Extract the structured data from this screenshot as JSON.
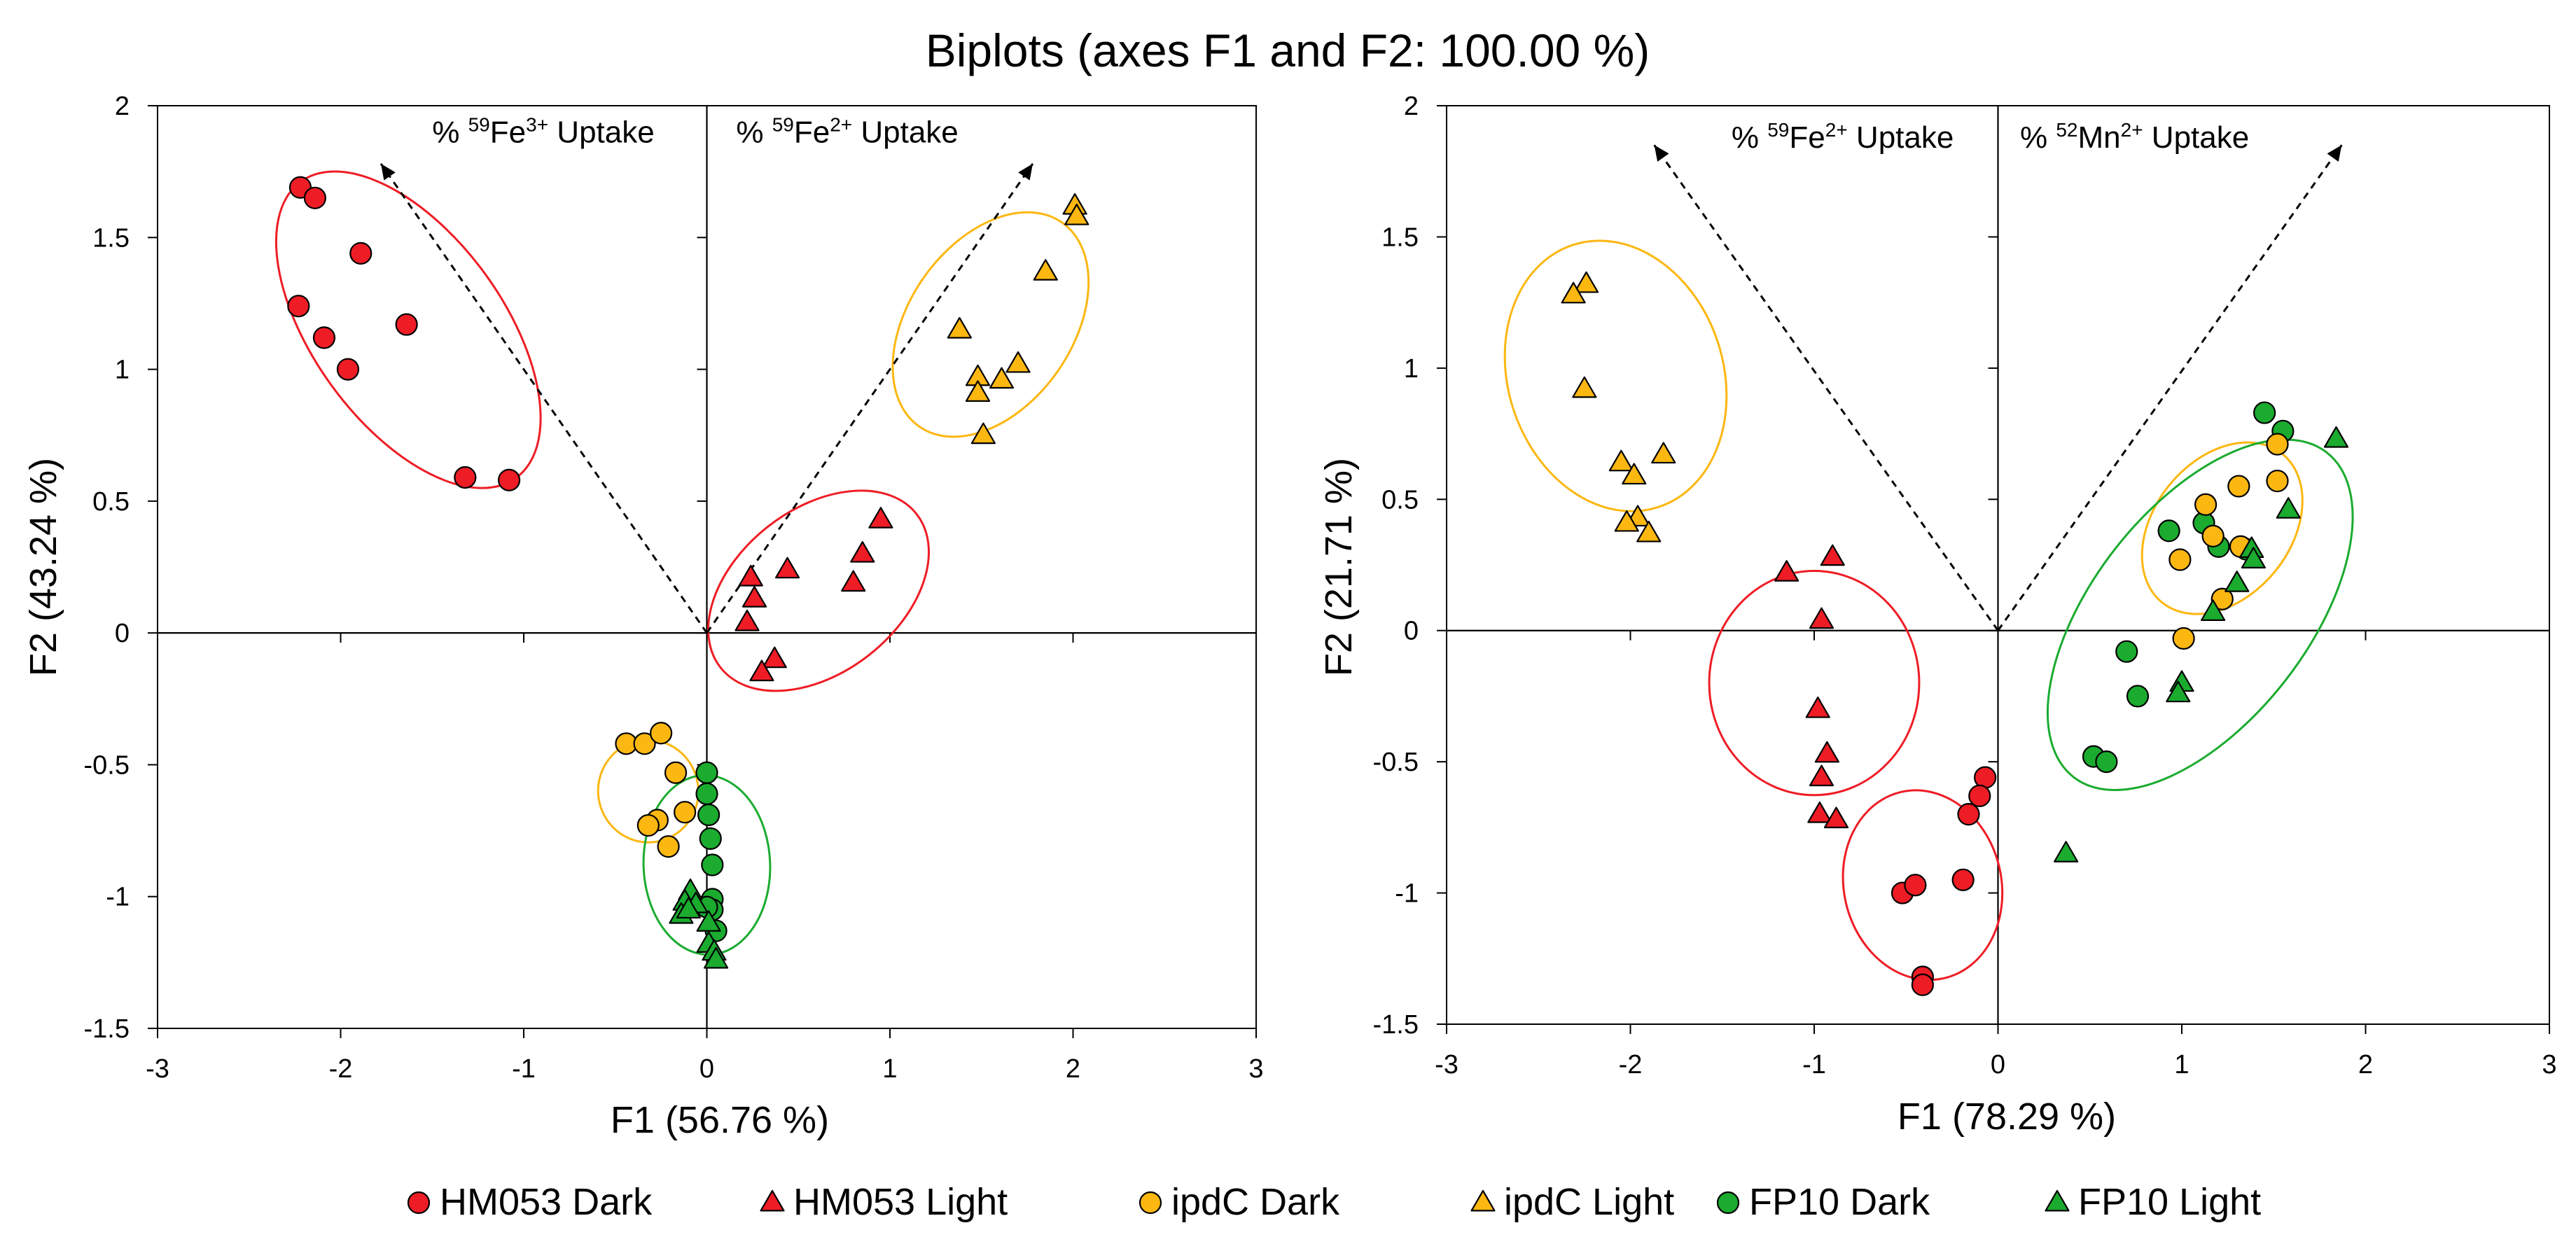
{
  "chart_data": {
    "title": "Biplots (axes F1 and F2: 100.00 %)",
    "markers": {
      "HM053 Dark": {
        "shape": "circle",
        "color": "#ee1c25"
      },
      "HM053 Light": {
        "shape": "triangle",
        "color": "#ee1c25"
      },
      "ipdC Dark": {
        "shape": "circle",
        "color": "#fcb711"
      },
      "ipdC Light": {
        "shape": "triangle",
        "color": "#fcb711"
      },
      "FP10 Dark": {
        "shape": "circle",
        "color": "#1aab2f"
      },
      "FP10 Light": {
        "shape": "triangle",
        "color": "#1aab2f"
      }
    },
    "legend": [
      {
        "label": "HM053 Dark",
        "series": "HM053 Dark"
      },
      {
        "label": "HM053 Light",
        "series": "HM053 Light"
      },
      {
        "label": "ipdC Dark",
        "series": "ipdC Dark"
      },
      {
        "label": "ipdC Light",
        "series": "ipdC Light"
      },
      {
        "label": "FP10 Dark",
        "series": "FP10 Dark"
      },
      {
        "label": "FP10 Light",
        "series": "FP10 Light"
      }
    ],
    "plots": [
      {
        "type": "scatter",
        "xlabel": "F1 (56.76 %)",
        "ylabel": "F2 (43.24 %)",
        "xlim": [
          -3,
          3
        ],
        "ylim": [
          -1.5,
          2
        ],
        "xticks": [
          "-3",
          "-2",
          "-1",
          "0",
          "1",
          "2",
          "3"
        ],
        "yticks": [
          "-1.5",
          "-1",
          "-0.5",
          "0",
          "0.5",
          "1",
          "1.5",
          "2"
        ],
        "xtick_values": [
          -3,
          -2,
          -1,
          0,
          1,
          2,
          3
        ],
        "ytick_values": [
          -1.5,
          -1,
          -0.5,
          0,
          0.5,
          1,
          1.5,
          2
        ],
        "vectors": [
          {
            "name": "Fe3",
            "from": [
              0,
              0
            ],
            "to": [
              -1.78,
              1.78
            ]
          },
          {
            "name": "Fe2",
            "from": [
              0,
              0
            ],
            "to": [
              1.78,
              1.78
            ]
          }
        ],
        "vector_labels": [
          {
            "pre": "% ",
            "sup": "59",
            "mid": "Fe",
            "sup2": "3+",
            "post": " Uptake",
            "x": -1.5,
            "y": 1.86
          },
          {
            "pre": "% ",
            "sup": "59",
            "mid": "Fe",
            "sup2": "2+",
            "post": " Uptake",
            "x": 0.16,
            "y": 1.86
          }
        ],
        "ellipses": [
          {
            "color": "#ee1c25",
            "cx": -1.63,
            "cy": 1.15,
            "rx": 1.0,
            "ry": 0.36,
            "angle_deg": -54
          },
          {
            "color": "#fcb711",
            "cx": 1.55,
            "cy": 1.17,
            "rx": 0.68,
            "ry": 0.31,
            "angle_deg": 55
          },
          {
            "color": "#ee1c25",
            "cx": 0.61,
            "cy": 0.16,
            "rx": 0.68,
            "ry": 0.31,
            "angle_deg": 38
          },
          {
            "color": "#fcb711",
            "cx": -0.32,
            "cy": -0.6,
            "rx": 0.28,
            "ry": 0.19,
            "angle_deg": -82
          },
          {
            "color": "#1aab2f",
            "cx": 0.0,
            "cy": -0.88,
            "rx": 0.49,
            "ry": 0.24,
            "angle_deg": -88
          }
        ],
        "series": [
          {
            "name": "HM053 Dark",
            "points": [
              [
                -2.22,
                1.69
              ],
              [
                -2.14,
                1.65
              ],
              [
                -1.89,
                1.44
              ],
              [
                -2.23,
                1.24
              ],
              [
                -2.09,
                1.12
              ],
              [
                -1.96,
                1.0
              ],
              [
                -1.64,
                1.17
              ],
              [
                -1.32,
                0.59
              ],
              [
                -1.08,
                0.58
              ]
            ]
          },
          {
            "name": "ipdC Light",
            "points": [
              [
                2.01,
                1.62
              ],
              [
                2.02,
                1.58
              ],
              [
                1.85,
                1.37
              ],
              [
                1.38,
                1.15
              ],
              [
                1.48,
                0.97
              ],
              [
                1.48,
                0.91
              ],
              [
                1.61,
                0.96
              ],
              [
                1.7,
                1.02
              ],
              [
                1.51,
                0.75
              ]
            ]
          },
          {
            "name": "HM053 Light",
            "points": [
              [
                0.24,
                0.21
              ],
              [
                0.26,
                0.13
              ],
              [
                0.44,
                0.24
              ],
              [
                0.22,
                0.04
              ],
              [
                0.85,
                0.3
              ],
              [
                0.95,
                0.43
              ],
              [
                0.8,
                0.19
              ],
              [
                0.37,
                -0.1
              ],
              [
                0.3,
                -0.15
              ]
            ]
          },
          {
            "name": "ipdC Dark",
            "points": [
              [
                -0.44,
                -0.42
              ],
              [
                -0.34,
                -0.42
              ],
              [
                -0.25,
                -0.38
              ],
              [
                -0.17,
                -0.53
              ],
              [
                -0.27,
                -0.71
              ],
              [
                -0.32,
                -0.73
              ],
              [
                -0.12,
                -0.68
              ],
              [
                -0.21,
                -0.81
              ]
            ]
          },
          {
            "name": "FP10 Dark",
            "points": [
              [
                0.0,
                -0.53
              ],
              [
                0.0,
                -0.61
              ],
              [
                0.01,
                -0.69
              ],
              [
                0.02,
                -0.78
              ],
              [
                0.03,
                -0.88
              ],
              [
                0.03,
                -1.01
              ],
              [
                0.03,
                -1.05
              ],
              [
                0.05,
                -1.13
              ],
              [
                0.0,
                -1.04
              ]
            ]
          },
          {
            "name": "FP10 Light",
            "points": [
              [
                -0.09,
                -0.98
              ],
              [
                -0.12,
                -1.02
              ],
              [
                -0.06,
                -1.03
              ],
              [
                -0.14,
                -1.07
              ],
              [
                -0.1,
                -1.05
              ],
              [
                0.01,
                -1.1
              ],
              [
                0.01,
                -1.18
              ],
              [
                0.04,
                -1.21
              ],
              [
                0.05,
                -1.24
              ]
            ]
          }
        ]
      },
      {
        "type": "scatter",
        "xlabel": "F1 (78.29 %)",
        "ylabel": "F2 (21.71 %)",
        "xlim": [
          -3,
          3
        ],
        "ylim": [
          -1.5,
          2
        ],
        "xticks": [
          "-3",
          "-2",
          "-1",
          "0",
          "1",
          "2",
          "3"
        ],
        "yticks": [
          "-1.5",
          "-1",
          "-0.5",
          "0",
          "0.5",
          "1",
          "1.5",
          "2"
        ],
        "xtick_values": [
          -3,
          -2,
          -1,
          0,
          1,
          2,
          3
        ],
        "ytick_values": [
          -1.5,
          -1,
          -0.5,
          0,
          0.5,
          1,
          1.5,
          2
        ],
        "vectors": [
          {
            "name": "Fe2",
            "from": [
              0,
              0
            ],
            "to": [
              -1.87,
              1.85
            ]
          },
          {
            "name": "Mn2",
            "from": [
              0,
              0
            ],
            "to": [
              1.87,
              1.85
            ]
          }
        ],
        "vector_labels": [
          {
            "pre": "% ",
            "sup": "59",
            "mid": "Fe",
            "sup2": "2+",
            "post": " Uptake",
            "x": -1.45,
            "y": 1.84
          },
          {
            "pre": "% ",
            "sup": "52",
            "mid": "Mn",
            "sup2": "2+",
            "post": " Uptake",
            "x": 0.12,
            "y": 1.84
          }
        ],
        "ellipses": [
          {
            "color": "#fcb711",
            "cx": -2.08,
            "cy": 0.97,
            "rx": 0.75,
            "ry": 0.41,
            "angle_deg": -72
          },
          {
            "color": "#ee1c25",
            "cx": -1.0,
            "cy": -0.2,
            "rx": 0.61,
            "ry": 0.4,
            "angle_deg": -90
          },
          {
            "color": "#ee1c25",
            "cx": -0.41,
            "cy": -0.97,
            "rx": 0.52,
            "ry": 0.3,
            "angle_deg": -77
          },
          {
            "color": "#fcb711",
            "cx": 1.22,
            "cy": 0.39,
            "rx": 0.52,
            "ry": 0.26,
            "angle_deg": 51
          },
          {
            "color": "#1aab2f",
            "cx": 1.1,
            "cy": 0.06,
            "rx": 1.12,
            "ry": 0.41,
            "angle_deg": 52
          }
        ],
        "series": [
          {
            "name": "ipdC Light",
            "points": [
              [
                -2.24,
                1.32
              ],
              [
                -2.31,
                1.28
              ],
              [
                -2.25,
                0.92
              ],
              [
                -2.05,
                0.64
              ],
              [
                -1.98,
                0.59
              ],
              [
                -1.82,
                0.67
              ],
              [
                -1.96,
                0.43
              ],
              [
                -2.02,
                0.41
              ],
              [
                -1.9,
                0.37
              ]
            ]
          },
          {
            "name": "HM053 Light",
            "points": [
              [
                -1.15,
                0.22
              ],
              [
                -0.9,
                0.28
              ],
              [
                -0.96,
                0.04
              ],
              [
                -0.98,
                -0.3
              ],
              [
                -0.93,
                -0.47
              ],
              [
                -0.96,
                -0.56
              ],
              [
                -0.97,
                -0.7
              ],
              [
                -0.88,
                -0.72
              ]
            ]
          },
          {
            "name": "HM053 Dark",
            "points": [
              [
                -0.07,
                -0.56
              ],
              [
                -0.1,
                -0.63
              ],
              [
                -0.16,
                -0.7
              ],
              [
                -0.19,
                -0.95
              ],
              [
                -0.41,
                -1.32
              ],
              [
                -0.41,
                -1.35
              ],
              [
                -0.52,
                -1.0
              ],
              [
                -0.45,
                -0.97
              ]
            ]
          },
          {
            "name": "FP10 Dark",
            "points": [
              [
                1.45,
                0.83
              ],
              [
                1.55,
                0.76
              ],
              [
                0.93,
                0.38
              ],
              [
                1.12,
                0.41
              ],
              [
                1.2,
                0.32
              ],
              [
                1.35,
                0.31
              ],
              [
                0.7,
                -0.08
              ],
              [
                0.76,
                -0.25
              ],
              [
                0.52,
                -0.48
              ],
              [
                0.59,
                -0.5
              ]
            ]
          },
          {
            "name": "ipdC Dark",
            "points": [
              [
                1.52,
                0.71
              ],
              [
                1.52,
                0.57
              ],
              [
                1.31,
                0.55
              ],
              [
                1.13,
                0.48
              ],
              [
                1.17,
                0.36
              ],
              [
                0.99,
                0.27
              ],
              [
                1.32,
                0.32
              ],
              [
                1.22,
                0.12
              ],
              [
                1.01,
                -0.03
              ]
            ]
          },
          {
            "name": "FP10 Light",
            "points": [
              [
                1.84,
                0.73
              ],
              [
                1.58,
                0.46
              ],
              [
                1.38,
                0.31
              ],
              [
                1.39,
                0.27
              ],
              [
                1.3,
                0.18
              ],
              [
                1.17,
                0.07
              ],
              [
                1.0,
                -0.2
              ],
              [
                0.98,
                -0.24
              ],
              [
                0.37,
                -0.85
              ]
            ]
          }
        ]
      }
    ]
  }
}
